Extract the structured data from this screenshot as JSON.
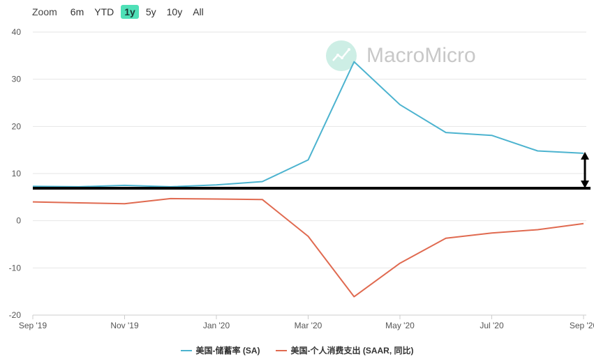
{
  "zoom": {
    "label": "Zoom",
    "buttons": [
      "6m",
      "YTD",
      "1y",
      "5y",
      "10y",
      "All"
    ],
    "active": "1y"
  },
  "watermark": {
    "text": "MacroMicro"
  },
  "colors": {
    "series1": "#4cb3cf",
    "series2": "#e06a50",
    "active_zoom": "#4fe0b7",
    "annotation": "#000000",
    "grid": "#e6e6e6"
  },
  "chart_data": {
    "type": "line",
    "x": [
      "Sep '19",
      "Oct '19",
      "Nov '19",
      "Dec '19",
      "Jan '20",
      "Feb '20",
      "Mar '20",
      "Apr '20",
      "May '20",
      "Jun '20",
      "Jul '20",
      "Aug '20",
      "Sep '20"
    ],
    "x_tick_labels": [
      "Sep '19",
      "Nov '19",
      "Jan '20",
      "Mar '20",
      "May '20",
      "Jul '20",
      "Sep '20"
    ],
    "y_ticks": [
      40,
      30,
      20,
      10,
      0,
      -10,
      -20
    ],
    "ylim": [
      -20,
      40
    ],
    "series": [
      {
        "name": "美国-储蓄率 (SA)",
        "values": [
          7.3,
          7.2,
          7.5,
          7.2,
          7.6,
          8.3,
          12.9,
          33.7,
          24.6,
          18.7,
          18.1,
          14.8,
          14.3
        ]
      },
      {
        "name": "美国-个人消费支出 (SAAR, 同比)",
        "values": [
          4.0,
          3.8,
          3.6,
          4.7,
          4.6,
          4.5,
          -3.3,
          -16.1,
          -9.0,
          -3.7,
          -2.6,
          -1.9,
          -0.6
        ]
      }
    ],
    "annotation": {
      "type": "reference-line-with-arrow",
      "line_value": 6.9,
      "arrow_from": 6.9,
      "arrow_to": 14.3
    },
    "grid": true,
    "legend": "bottom"
  }
}
